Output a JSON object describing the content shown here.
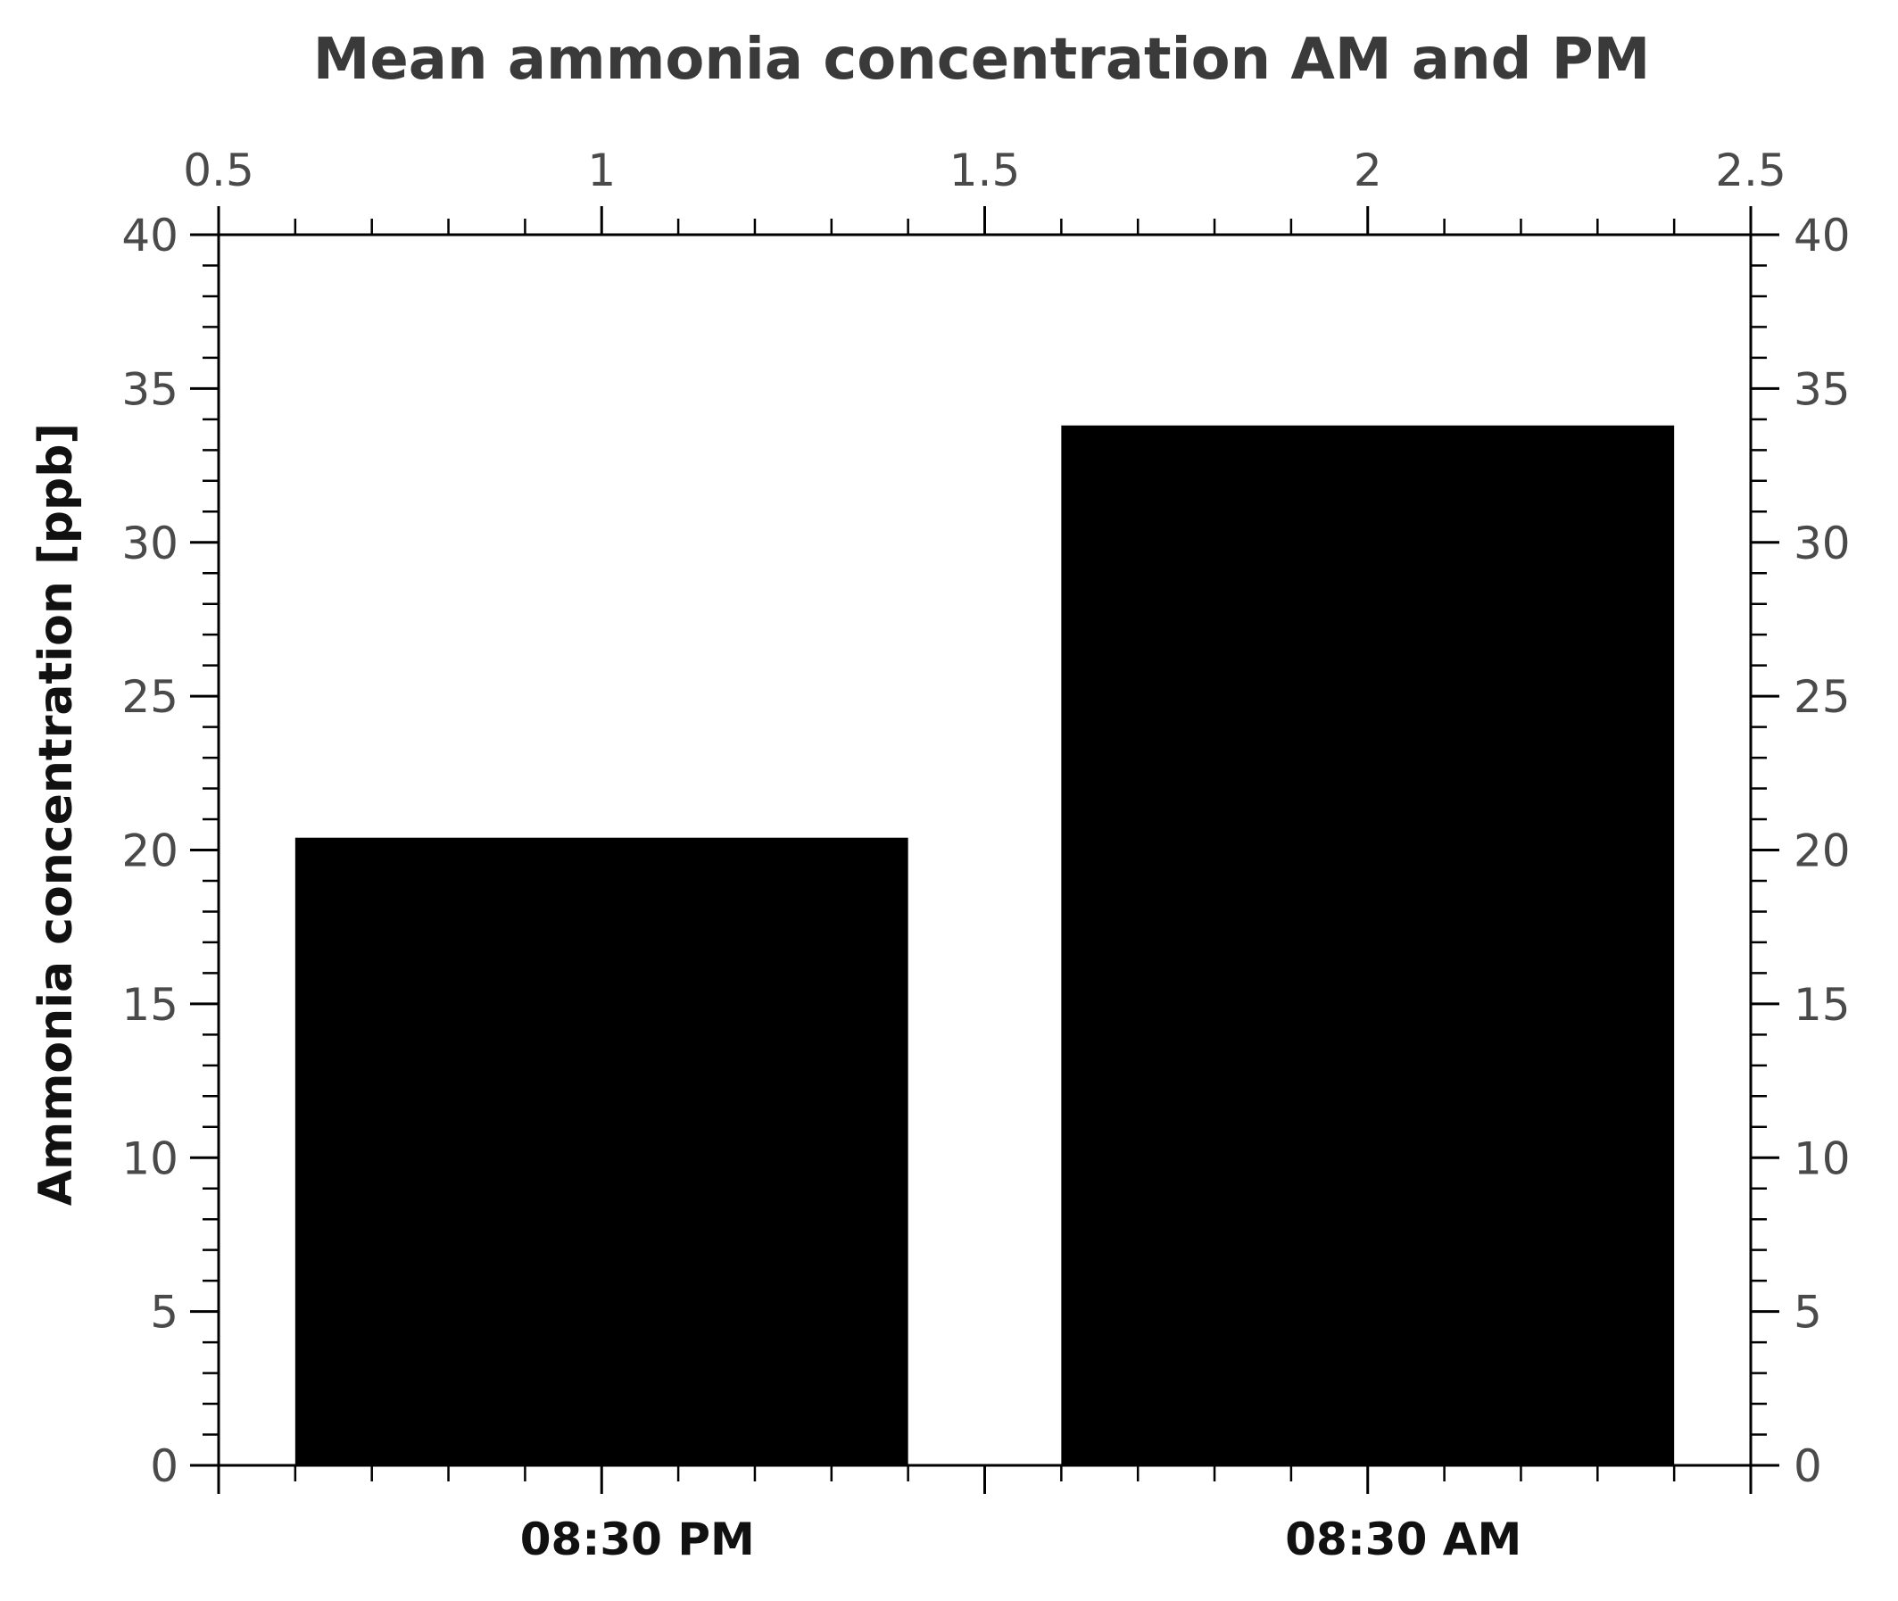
{
  "chart_data": {
    "type": "bar",
    "title": "Mean ammonia concentration AM and PM",
    "ylabel": "Ammonia concentration [ppb]",
    "xlabel": "",
    "categories": [
      "08:30 PM",
      "08:30 AM"
    ],
    "x": [
      1,
      2
    ],
    "values": [
      20.4,
      33.8
    ],
    "bar_color": "#000000",
    "xlim": [
      0.5,
      2.5
    ],
    "ylim": [
      0,
      40
    ],
    "x_ticks_top": [
      "0.5",
      "1",
      "1.5",
      "2",
      "2.5"
    ],
    "y_ticks": [
      "0",
      "5",
      "10",
      "15",
      "20",
      "25",
      "30",
      "35",
      "40"
    ],
    "y_ticks_mirrored_right": true,
    "grid": false,
    "legend": "none"
  }
}
